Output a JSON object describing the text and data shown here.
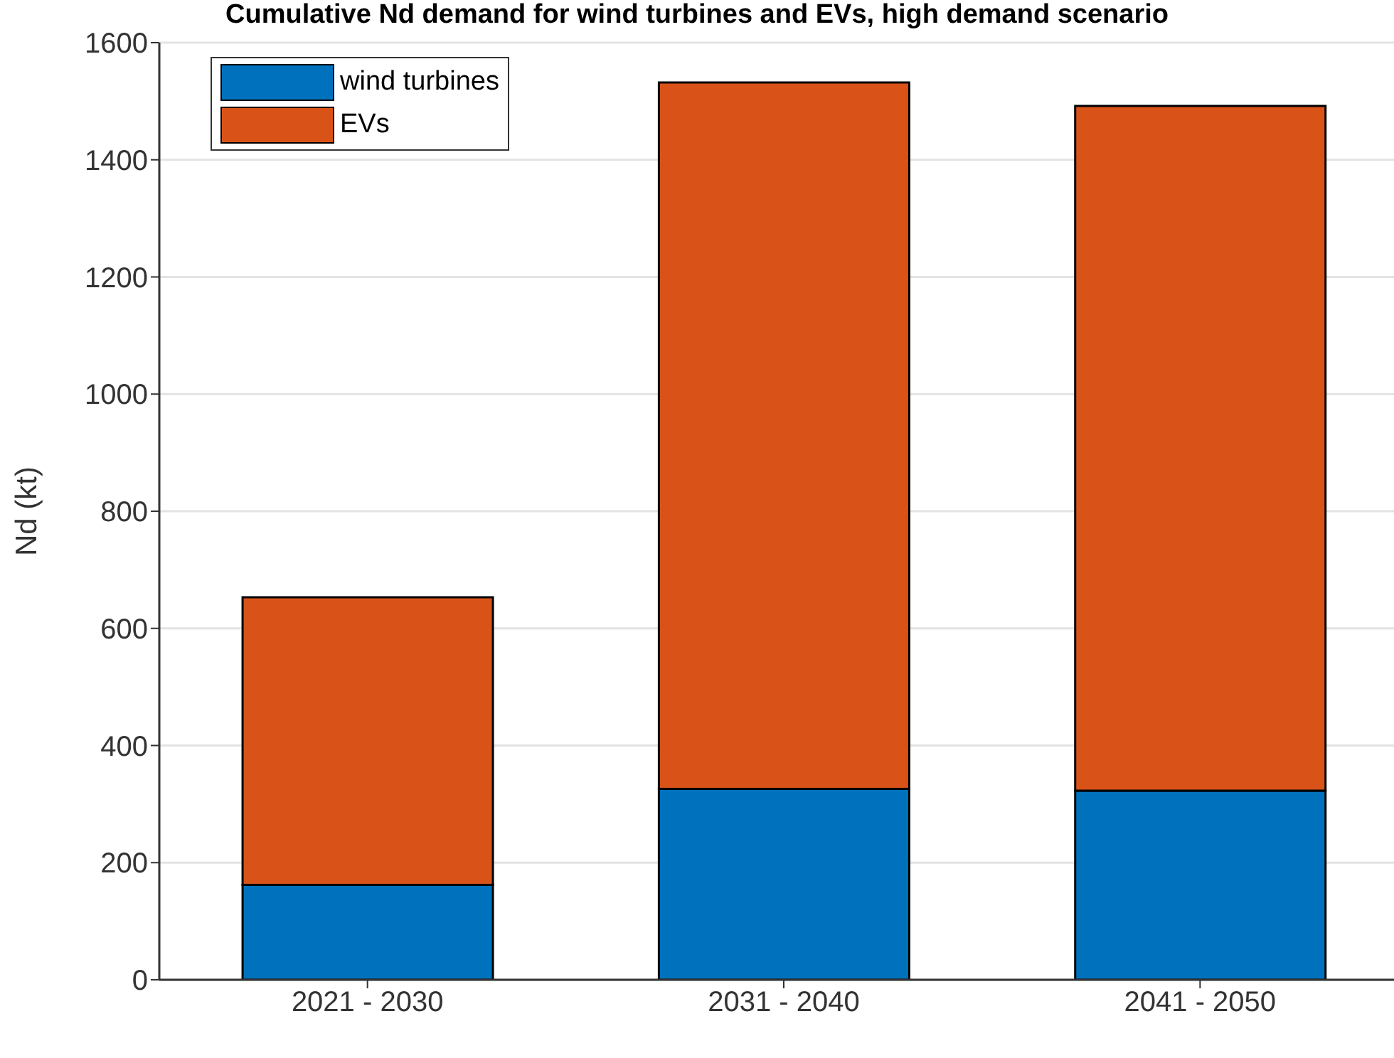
{
  "chart_data": {
    "type": "bar",
    "title": "Cumulative Nd demand for wind turbines and EVs, high demand scenario",
    "ylabel": "Nd (kt)",
    "categories": [
      "2021 - 2030",
      "2031 - 2040",
      "2041 - 2050"
    ],
    "series": [
      {
        "name": "wind turbines",
        "color": "#0072bd",
        "values": [
          162,
          326,
          323
        ]
      },
      {
        "name": "EVs",
        "color": "#d95319",
        "values": [
          491,
          1206,
          1169
        ]
      }
    ],
    "stacked": true,
    "ylim": [
      0,
      1600
    ],
    "yticks": [
      0,
      200,
      400,
      600,
      800,
      1000,
      1200,
      1400,
      1600
    ],
    "grid": "y",
    "legend": "top left"
  }
}
